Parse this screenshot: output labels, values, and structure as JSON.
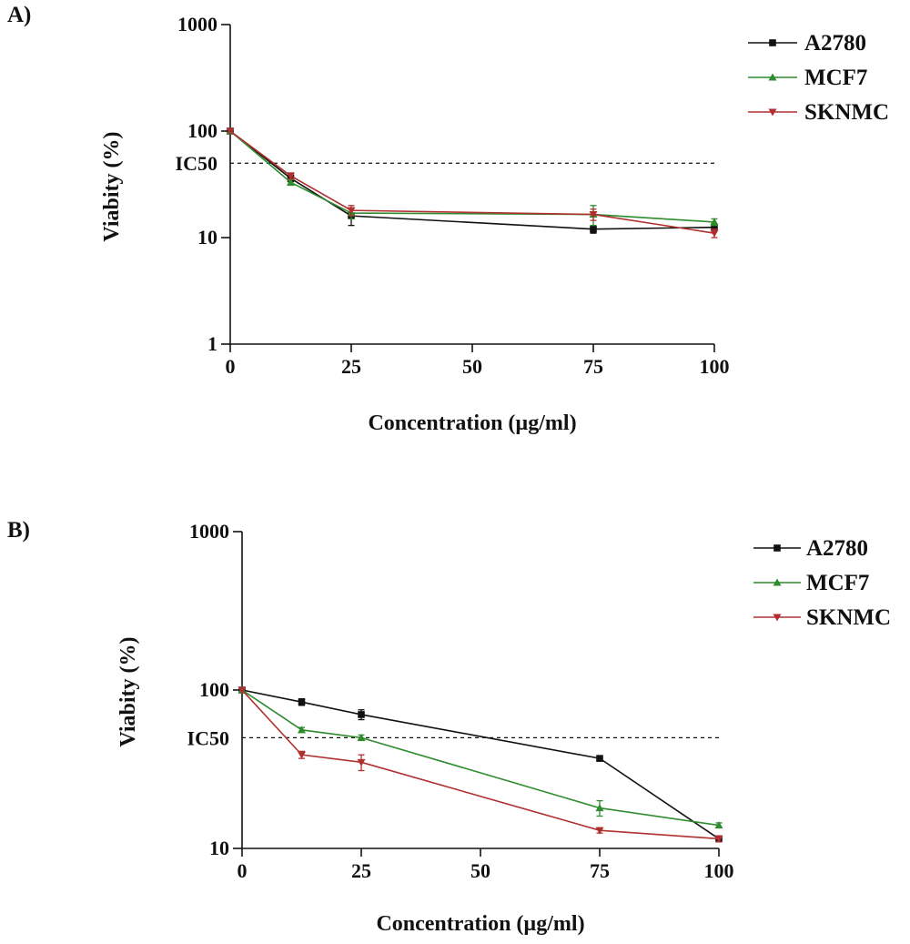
{
  "chart_data": [
    {
      "type": "line",
      "panel_label": "A)",
      "xlabel": "Concentration (µg/ml)",
      "ylabel": "Viabity (%)",
      "y_scale": "log",
      "xlim": [
        0,
        100
      ],
      "ylim": [
        1,
        1000
      ],
      "x_ticks": [
        0,
        25,
        50,
        75,
        100
      ],
      "y_ticks": [
        1,
        10,
        100,
        1000
      ],
      "reference_line": {
        "label": "IC50",
        "y": 50,
        "style": "dashed"
      },
      "legend_position": "top-right",
      "series": [
        {
          "name": "A2780",
          "color": "#111111",
          "marker": "square",
          "x": [
            0,
            12.5,
            25,
            75,
            100
          ],
          "y": [
            100,
            36,
            16,
            12,
            12.5
          ],
          "err": [
            0,
            2.5,
            3,
            1,
            1
          ]
        },
        {
          "name": "MCF7",
          "color": "#2e8b2e",
          "marker": "triangle-up",
          "x": [
            0,
            12.5,
            25,
            75,
            100
          ],
          "y": [
            100,
            33,
            17,
            16.5,
            14
          ],
          "err": [
            0,
            2,
            2,
            3.5,
            1
          ]
        },
        {
          "name": "SKNMC",
          "color": "#b03030",
          "marker": "triangle-down",
          "x": [
            0,
            12.5,
            25,
            75,
            100
          ],
          "y": [
            100,
            38,
            18,
            16.5,
            11
          ],
          "err": [
            0,
            2.5,
            2,
            2,
            1
          ]
        }
      ]
    },
    {
      "type": "line",
      "panel_label": "B)",
      "xlabel": "Concentration (µg/ml)",
      "ylabel": "Viabity (%)",
      "y_scale": "log",
      "xlim": [
        0,
        100
      ],
      "ylim": [
        10,
        1000
      ],
      "x_ticks": [
        0,
        25,
        50,
        75,
        100
      ],
      "y_ticks": [
        10,
        100,
        1000
      ],
      "reference_line": {
        "label": "IC50",
        "y": 50,
        "style": "dashed"
      },
      "legend_position": "top-right",
      "series": [
        {
          "name": "A2780",
          "color": "#111111",
          "marker": "square",
          "x": [
            0,
            12.5,
            25,
            75,
            100
          ],
          "y": [
            100,
            84,
            70,
            37,
            11.5
          ],
          "err": [
            0,
            4,
            5,
            1,
            0.5
          ]
        },
        {
          "name": "MCF7",
          "color": "#2e8b2e",
          "marker": "triangle-up",
          "x": [
            0,
            12.5,
            25,
            75,
            100
          ],
          "y": [
            100,
            56,
            50,
            18,
            14
          ],
          "err": [
            0,
            2,
            2,
            2,
            0.5
          ]
        },
        {
          "name": "SKNMC",
          "color": "#b03030",
          "marker": "triangle-down",
          "x": [
            0,
            12.5,
            25,
            75,
            100
          ],
          "y": [
            100,
            39,
            35,
            13,
            11.5
          ],
          "err": [
            0,
            2,
            4,
            0.5,
            0.5
          ]
        }
      ]
    }
  ]
}
